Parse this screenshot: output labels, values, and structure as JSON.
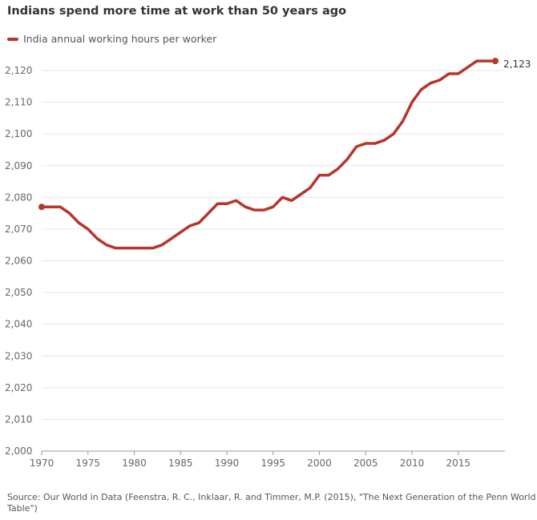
{
  "title": "Indians spend more time at work than 50 years ago",
  "source": "Source: Our World in Data (Feenstra, R. C., Inklaar, R. and Timmer, M.P. (2015), \"The Next Generation of the Penn World Table\")",
  "colors": {
    "line": "#b8352a",
    "grid": "#e6e6e6",
    "axis": "#999999"
  },
  "chart_data": {
    "type": "line",
    "title": "Indians spend more time at work than 50 years ago",
    "xlabel": "",
    "ylabel": "",
    "xlim": [
      1970,
      2019
    ],
    "ylim": [
      2000,
      2120
    ],
    "x_ticks": [
      1970,
      1975,
      1980,
      1985,
      1990,
      1995,
      2000,
      2005,
      2010,
      2015
    ],
    "y_ticks": [
      "2,000",
      "2,010",
      "2,020",
      "2,030",
      "2,040",
      "2,050",
      "2,060",
      "2,070",
      "2,080",
      "2,090",
      "2,100",
      "2,110",
      "2,120"
    ],
    "grid": true,
    "legend": "top-left",
    "end_label": "2,123",
    "series": [
      {
        "name": "India annual working hours per worker",
        "x": [
          1970,
          1971,
          1972,
          1973,
          1974,
          1975,
          1976,
          1977,
          1978,
          1979,
          1980,
          1981,
          1982,
          1983,
          1984,
          1985,
          1986,
          1987,
          1988,
          1989,
          1990,
          1991,
          1992,
          1993,
          1994,
          1995,
          1996,
          1997,
          1998,
          1999,
          2000,
          2001,
          2002,
          2003,
          2004,
          2005,
          2006,
          2007,
          2008,
          2009,
          2010,
          2011,
          2012,
          2013,
          2014,
          2015,
          2016,
          2017,
          2018,
          2019
        ],
        "values": [
          2077,
          2077,
          2077,
          2075,
          2072,
          2070,
          2067,
          2065,
          2064,
          2064,
          2064,
          2064,
          2064,
          2065,
          2067,
          2069,
          2071,
          2072,
          2075,
          2078,
          2078,
          2079,
          2077,
          2076,
          2076,
          2077,
          2080,
          2079,
          2081,
          2083,
          2087,
          2087,
          2089,
          2092,
          2096,
          2097,
          2097,
          2098,
          2100,
          2104,
          2110,
          2114,
          2116,
          2117,
          2119,
          2119,
          2121,
          2123,
          2123,
          2123
        ]
      }
    ]
  }
}
